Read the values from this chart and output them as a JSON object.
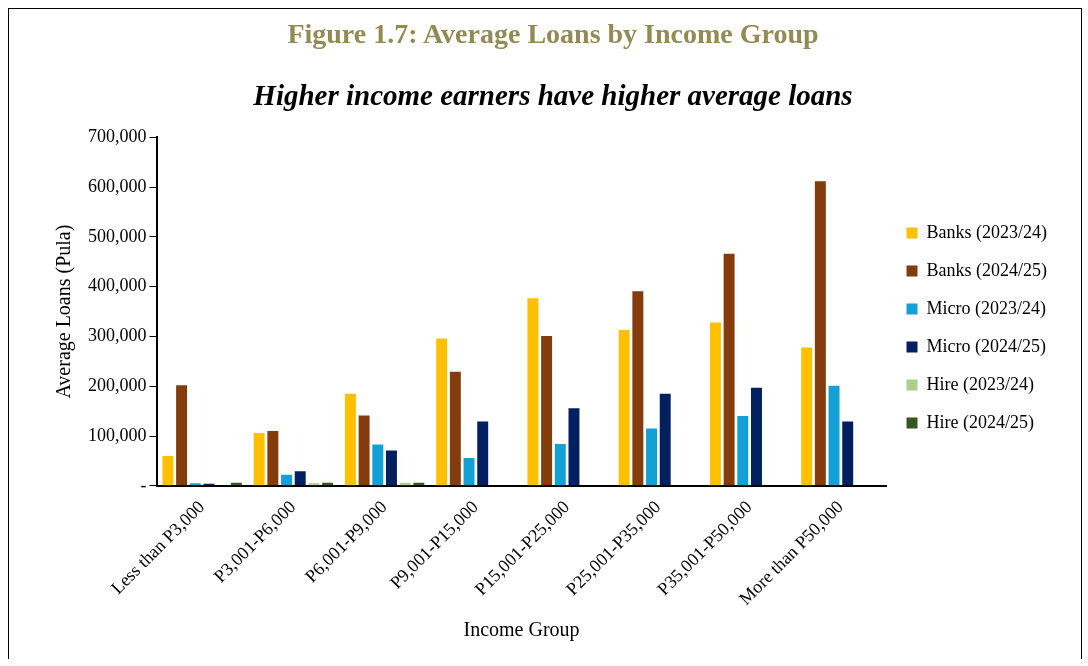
{
  "chart_data": {
    "type": "bar",
    "title": "Figure 1.7: Average Loans by Income Group",
    "subtitle": "Higher income earners have higher average loans",
    "xlabel": "Income Group",
    "ylabel": "Average Loans (Pula)",
    "categories": [
      "Less than P3,000",
      "P3,001-P6,000",
      "P6,001-P9,000",
      "P9,001-P15,000",
      "P15,001-P25,000",
      "P25,001-P35,000",
      "P35,001-P50,000",
      "More than P50,000"
    ],
    "series": [
      {
        "name": "Banks (2023/24)",
        "color": "#ffc000",
        "values": [
          60000,
          106000,
          185000,
          296000,
          377000,
          313000,
          328000,
          278000
        ]
      },
      {
        "name": "Banks (2024/25)",
        "color": "#843c0c",
        "values": [
          202000,
          110000,
          141000,
          229000,
          301000,
          391000,
          466000,
          612000
        ]
      },
      {
        "name": "Micro (2023/24)",
        "color": "#12a0d7",
        "values": [
          5000,
          22000,
          83000,
          56000,
          84000,
          115000,
          140000,
          201000
        ]
      },
      {
        "name": "Micro (2024/25)",
        "color": "#002060",
        "values": [
          4000,
          29000,
          71000,
          129000,
          156000,
          185000,
          197000,
          129000
        ]
      },
      {
        "name": "Hire (2023/24)",
        "color": "#a9d18e",
        "values": [
          null,
          5000,
          6000,
          null,
          null,
          null,
          null,
          null
        ]
      },
      {
        "name": "Hire (2024/25)",
        "color": "#375623",
        "values": [
          6000,
          6000,
          6000,
          null,
          null,
          null,
          null,
          null
        ]
      }
    ],
    "ylim": [
      0,
      700000
    ],
    "yticks": [
      {
        "value": 0,
        "label": "-"
      },
      {
        "value": 100000,
        "label": "100,000"
      },
      {
        "value": 200000,
        "label": "200,000"
      },
      {
        "value": 300000,
        "label": "300,000"
      },
      {
        "value": 400000,
        "label": "400,000"
      },
      {
        "value": 500000,
        "label": "500,000"
      },
      {
        "value": 600000,
        "label": "600,000"
      },
      {
        "value": 700000,
        "label": "700,000"
      }
    ],
    "grid": false,
    "legend": "right"
  }
}
